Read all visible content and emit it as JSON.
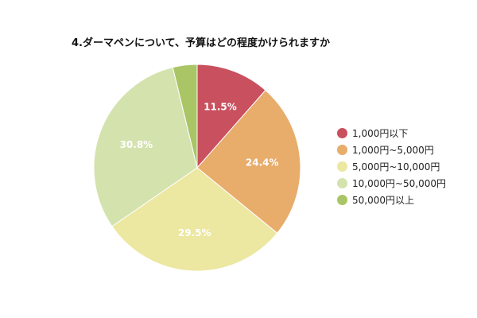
{
  "chart_data": {
    "type": "pie",
    "title": "4.ダーマペンについて、予算はどの程度かけられますか",
    "categories": [
      "1,000円以下",
      "1,000円~5,000円",
      "5,000円~10,000円",
      "10,000円~50,000円",
      "50,000円以上"
    ],
    "values": [
      11.5,
      24.4,
      29.5,
      30.8,
      3.8
    ],
    "data_labels": [
      "11.5%",
      "24.4%",
      "29.5%",
      "30.8%",
      ""
    ],
    "colors": [
      "#c9505e",
      "#e8ac6b",
      "#ece7a1",
      "#d4e2ad",
      "#a9c566"
    ],
    "legend_position": "right",
    "start_angle": "top, clockwise"
  }
}
